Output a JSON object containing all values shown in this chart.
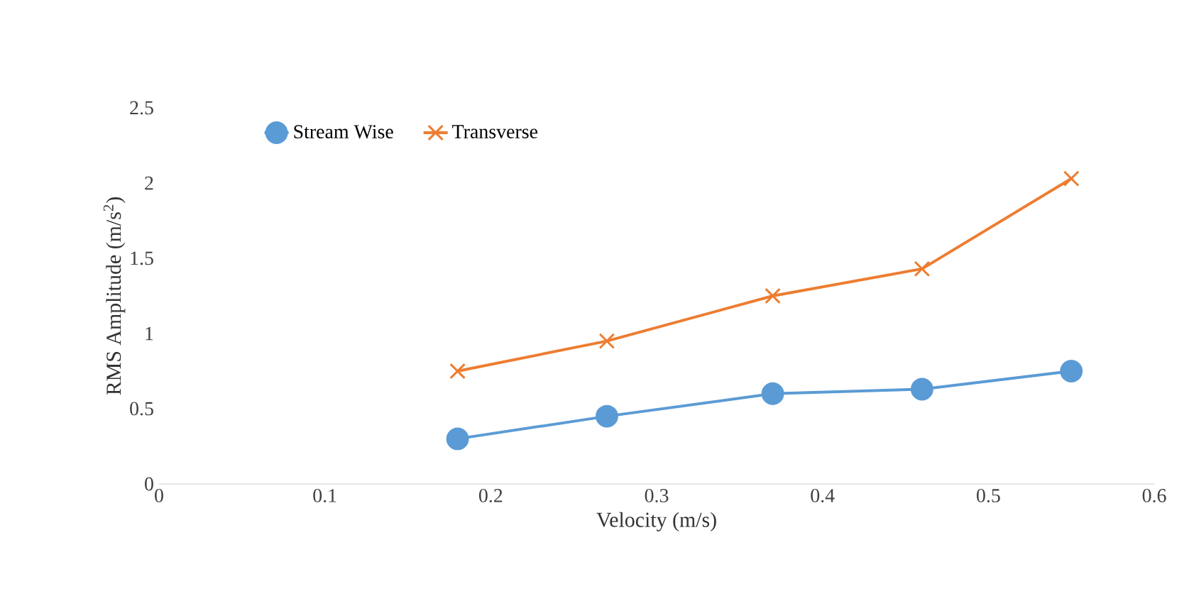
{
  "chart_data": {
    "type": "line",
    "xlabel": "Velocity (m/s)",
    "ylabel": "RMS Amplitude (m/s$^{2}$)",
    "x": [
      0.18,
      0.27,
      0.37,
      0.46,
      0.55
    ],
    "series": [
      {
        "name": "Stream Wise",
        "color": "#5b9bd5",
        "marker": "circle",
        "values": [
          0.3,
          0.45,
          0.6,
          0.63,
          0.75
        ]
      },
      {
        "name": "Transverse",
        "color": "#ed7d31",
        "marker": "cross",
        "values": [
          0.75,
          0.95,
          1.25,
          1.43,
          2.03
        ]
      }
    ],
    "xlim": [
      0,
      0.6
    ],
    "ylim": [
      0,
      2.5
    ],
    "xticks": [
      0,
      0.1,
      0.2,
      0.3,
      0.4,
      0.5,
      0.6
    ],
    "yticks": [
      0,
      0.5,
      1,
      1.5,
      2,
      2.5
    ],
    "grid": false,
    "legend": "top left",
    "line_style": "solid"
  }
}
